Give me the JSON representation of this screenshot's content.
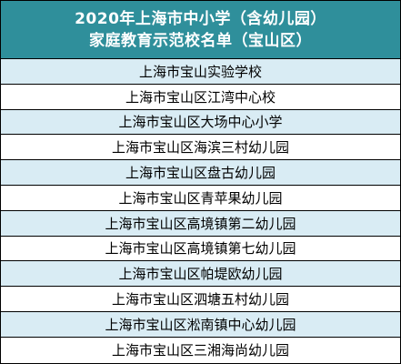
{
  "header": {
    "line1": "2020年上海市中小学（含幼儿园）",
    "line2": "家庭教育示范校名单（宝山区）"
  },
  "schools": [
    "上海市宝山实验学校",
    "上海市宝山区江湾中心校",
    "上海市宝山区大场中心小学",
    "上海市宝山区海滨三村幼儿园",
    "上海市宝山区盘古幼儿园",
    "上海市宝山区青苹果幼儿园",
    "上海市宝山区高境镇第二幼儿园",
    "上海市宝山区高境镇第七幼儿园",
    "上海市宝山区帕堤欧幼儿园",
    "上海市宝山区泗塘五村幼儿园",
    "上海市宝山区淞南镇中心幼儿园",
    "上海市宝山区三湘海尚幼儿园"
  ],
  "colors": {
    "header_bg": "#2f8f9b",
    "header_text": "#ffffff",
    "row_odd_bg": "#d9ecf4",
    "row_even_bg": "#ffffff"
  }
}
